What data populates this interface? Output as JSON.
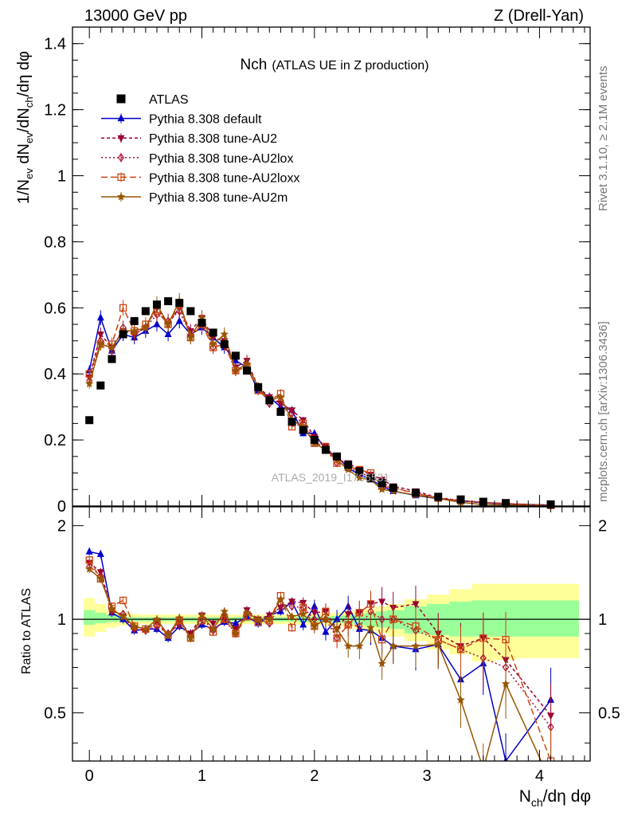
{
  "header": {
    "left": "13000 GeV pp",
    "right": "Z (Drell-Yan)"
  },
  "side_text": {
    "rivet": "Rivet 3.1.10, ≥ 2.1M events",
    "mcplots": "mcplots.cern.ch [arXiv:1306.3436]"
  },
  "watermark": "ATLAS_2019_I1736531",
  "chart_data": [
    {
      "type": "scatter",
      "title_main": "Nch",
      "title_sub": "(ATLAS UE in Z production)",
      "ylabel": "1/N_ev dN_ev/dN_ch/dη dφ",
      "xlim": [
        -0.15,
        4.45
      ],
      "ylim": [
        0,
        1.45
      ],
      "y_ticks": [
        "0",
        "0.2",
        "0.4",
        "0.6",
        "0.8",
        "1",
        "1.2",
        "1.4"
      ],
      "legend_placement": "top-left",
      "x": [
        0.0,
        0.1,
        0.2,
        0.3,
        0.4,
        0.5,
        0.6,
        0.7,
        0.8,
        0.9,
        1.0,
        1.1,
        1.2,
        1.3,
        1.4,
        1.5,
        1.6,
        1.7,
        1.8,
        1.9,
        2.0,
        2.1,
        2.2,
        2.3,
        2.4,
        2.5,
        2.6,
        2.7,
        2.9,
        3.1,
        3.3,
        3.5,
        3.7,
        4.1
      ],
      "series": [
        {
          "name": "ATLAS",
          "color": "#000000",
          "marker": "square",
          "values": [
            0.26,
            0.365,
            0.445,
            0.52,
            0.56,
            0.59,
            0.61,
            0.62,
            0.615,
            0.59,
            0.555,
            0.525,
            0.49,
            0.455,
            0.41,
            0.36,
            0.32,
            0.285,
            0.255,
            0.23,
            0.2,
            0.17,
            0.15,
            0.125,
            0.105,
            0.085,
            0.07,
            0.055,
            0.04,
            0.028,
            0.02,
            0.013,
            0.009,
            0.005
          ]
        },
        {
          "name": "Pythia 8.308 default",
          "color": "#0000cc",
          "marker": "triangle-up",
          "dash": "",
          "values": [
            0.41,
            0.57,
            0.47,
            0.52,
            0.51,
            0.53,
            0.55,
            0.52,
            0.56,
            0.52,
            0.54,
            0.51,
            0.48,
            0.44,
            0.42,
            0.35,
            0.33,
            0.3,
            0.29,
            0.22,
            0.22,
            0.17,
            0.15,
            0.115,
            0.095,
            0.08,
            0.06,
            0.045,
            0.032,
            0.022,
            0.016,
            0.01,
            0.006,
            0.003
          ]
        },
        {
          "name": "Pythia 8.308 tune-AU2",
          "color": "#990033",
          "marker": "triangle-down",
          "dash": "4,3",
          "values": [
            0.39,
            0.52,
            0.48,
            0.53,
            0.52,
            0.54,
            0.6,
            0.55,
            0.6,
            0.53,
            0.57,
            0.51,
            0.5,
            0.42,
            0.44,
            0.36,
            0.33,
            0.31,
            0.29,
            0.26,
            0.21,
            0.18,
            0.14,
            0.13,
            0.11,
            0.095,
            0.08,
            0.06,
            0.045,
            0.025,
            0.017,
            0.011,
            0.007,
            0.002
          ]
        },
        {
          "name": "Pythia 8.308 tune-AU2lox",
          "color": "#aa1133",
          "marker": "diamond",
          "dash": "2,3",
          "values": [
            0.38,
            0.5,
            0.47,
            0.54,
            0.52,
            0.54,
            0.58,
            0.56,
            0.59,
            0.52,
            0.56,
            0.48,
            0.49,
            0.41,
            0.43,
            0.36,
            0.31,
            0.32,
            0.28,
            0.25,
            0.2,
            0.17,
            0.13,
            0.12,
            0.1,
            0.09,
            0.07,
            0.055,
            0.04,
            0.024,
            0.016,
            0.01,
            0.006,
            0.002
          ]
        },
        {
          "name": "Pythia 8.308 tune-AU2loxx",
          "color": "#cc4411",
          "marker": "square-open",
          "dash": "8,4",
          "values": [
            0.4,
            0.49,
            0.49,
            0.6,
            0.53,
            0.55,
            0.59,
            0.55,
            0.61,
            0.51,
            0.55,
            0.48,
            0.49,
            0.41,
            0.42,
            0.35,
            0.32,
            0.34,
            0.24,
            0.25,
            0.19,
            0.18,
            0.13,
            0.12,
            0.11,
            0.1,
            0.06,
            0.055,
            0.038,
            0.024,
            0.016,
            0.011,
            0.008,
            0.002
          ]
        },
        {
          "name": "Pythia 8.308 tune-AU2m",
          "color": "#995500",
          "marker": "star",
          "dash": "",
          "values": [
            0.37,
            0.49,
            0.48,
            0.53,
            0.53,
            0.54,
            0.61,
            0.55,
            0.62,
            0.51,
            0.57,
            0.49,
            0.52,
            0.41,
            0.43,
            0.36,
            0.32,
            0.33,
            0.26,
            0.24,
            0.19,
            0.17,
            0.14,
            0.11,
            0.085,
            0.08,
            0.05,
            0.045,
            0.033,
            0.023,
            0.011,
            0.004,
            0.003,
            0.001
          ]
        }
      ]
    },
    {
      "type": "scatter",
      "ylabel": "Ratio to ATLAS",
      "xlabel": "N_ch/dη dφ",
      "xlim": [
        -0.15,
        4.45
      ],
      "ylim": [
        0.35,
        2.3
      ],
      "y_ticks": [
        "0.5",
        "1",
        "2"
      ],
      "x_ticks": [
        "0",
        "1",
        "2",
        "3",
        "4"
      ],
      "reference_line": 1,
      "bands": {
        "x_edges": [
          -0.05,
          0.05,
          0.15,
          0.25,
          0.35,
          0.45,
          0.55,
          0.65,
          0.75,
          0.85,
          0.95,
          1.05,
          1.15,
          1.25,
          1.35,
          1.45,
          1.55,
          1.65,
          1.75,
          1.85,
          1.95,
          2.05,
          2.15,
          2.25,
          2.35,
          2.45,
          2.55,
          2.65,
          2.8,
          3.0,
          3.2,
          3.4,
          3.6,
          3.8,
          4.35
        ],
        "inner_lo": [
          0.96,
          0.97,
          0.98,
          0.985,
          0.985,
          0.985,
          0.985,
          0.985,
          0.985,
          0.985,
          0.985,
          0.985,
          0.985,
          0.985,
          0.985,
          0.985,
          0.985,
          0.985,
          0.985,
          0.98,
          0.98,
          0.98,
          0.975,
          0.97,
          0.96,
          0.95,
          0.94,
          0.93,
          0.9,
          0.89,
          0.88,
          0.88,
          0.88,
          0.88
        ],
        "inner_hi": [
          1.07,
          1.05,
          1.03,
          1.02,
          1.015,
          1.015,
          1.015,
          1.015,
          1.015,
          1.015,
          1.015,
          1.015,
          1.015,
          1.015,
          1.015,
          1.015,
          1.015,
          1.015,
          1.015,
          1.02,
          1.02,
          1.02,
          1.025,
          1.03,
          1.04,
          1.05,
          1.06,
          1.07,
          1.1,
          1.12,
          1.14,
          1.15,
          1.15,
          1.15
        ],
        "outer_lo": [
          0.88,
          0.91,
          0.94,
          0.955,
          0.96,
          0.965,
          0.965,
          0.965,
          0.965,
          0.965,
          0.965,
          0.965,
          0.965,
          0.965,
          0.965,
          0.965,
          0.965,
          0.965,
          0.965,
          0.96,
          0.96,
          0.955,
          0.95,
          0.94,
          0.93,
          0.92,
          0.9,
          0.88,
          0.85,
          0.8,
          0.77,
          0.73,
          0.74,
          0.75
        ],
        "outer_hi": [
          1.17,
          1.12,
          1.07,
          1.05,
          1.04,
          1.035,
          1.035,
          1.035,
          1.035,
          1.035,
          1.035,
          1.035,
          1.035,
          1.035,
          1.035,
          1.035,
          1.035,
          1.035,
          1.035,
          1.04,
          1.04,
          1.045,
          1.05,
          1.06,
          1.07,
          1.08,
          1.1,
          1.12,
          1.16,
          1.2,
          1.25,
          1.3,
          1.3,
          1.3
        ]
      },
      "series": [
        {
          "name": "Pythia 8.308 default",
          "color": "#0000cc",
          "values": [
            1.65,
            1.62,
            1.05,
            1.0,
            0.92,
            0.93,
            0.93,
            0.87,
            0.95,
            0.9,
            0.96,
            0.93,
            0.98,
            0.97,
            1.02,
            0.97,
            1.03,
            1.06,
            1.14,
            0.96,
            1.1,
            0.91,
            1.0,
            1.1,
            0.93,
            0.92,
            0.87,
            0.82,
            0.8,
            0.83,
            0.64,
            0.72,
            0.35,
            0.55
          ]
        },
        {
          "name": "Pythia 8.308 tune-AU2",
          "color": "#990033",
          "values": [
            1.52,
            1.42,
            1.07,
            1.02,
            0.93,
            0.92,
            0.98,
            0.89,
            0.98,
            0.9,
            1.03,
            0.97,
            1.02,
            0.93,
            1.07,
            1.0,
            1.03,
            1.09,
            1.14,
            1.13,
            1.05,
            1.06,
            0.93,
            1.04,
            1.05,
            1.12,
            1.14,
            1.09,
            1.12,
            0.9,
            0.82,
            0.87,
            0.74,
            0.49
          ]
        },
        {
          "name": "Pythia 8.308 tune-AU2lox",
          "color": "#aa1133",
          "values": [
            1.48,
            1.38,
            1.06,
            1.04,
            0.93,
            0.92,
            0.95,
            0.9,
            0.96,
            0.88,
            1.01,
            0.92,
            1.0,
            0.9,
            1.05,
            0.99,
            0.97,
            1.12,
            1.1,
            1.09,
            1.0,
            1.0,
            0.87,
            0.96,
            0.95,
            1.06,
            1.0,
            1.0,
            0.92,
            0.86,
            0.8,
            0.75,
            0.7,
            0.45
          ]
        },
        {
          "name": "Pythia 8.308 tune-AU2loxx",
          "color": "#cc4411",
          "values": [
            1.55,
            1.35,
            1.1,
            1.15,
            0.95,
            0.93,
            0.97,
            0.89,
            0.99,
            0.87,
            0.99,
            0.91,
            1.0,
            0.9,
            1.02,
            0.98,
            0.99,
            1.19,
            0.94,
            1.09,
            0.95,
            1.06,
            0.87,
            0.96,
            1.05,
            1.12,
            0.86,
            1.0,
            0.95,
            0.86,
            0.8,
            0.87,
            0.86,
            0.35
          ]
        },
        {
          "name": "Pythia 8.308 tune-AU2m",
          "color": "#995500",
          "values": [
            1.45,
            1.35,
            1.08,
            1.02,
            0.95,
            0.93,
            1.0,
            0.89,
            1.01,
            0.87,
            1.03,
            0.93,
            1.06,
            0.9,
            1.05,
            1.0,
            1.0,
            1.16,
            1.02,
            1.04,
            0.95,
            1.0,
            0.93,
            0.82,
            0.82,
            0.94,
            0.72,
            0.82,
            0.82,
            0.83,
            0.55,
            0.33,
            0.62,
            0.3
          ]
        }
      ]
    }
  ]
}
